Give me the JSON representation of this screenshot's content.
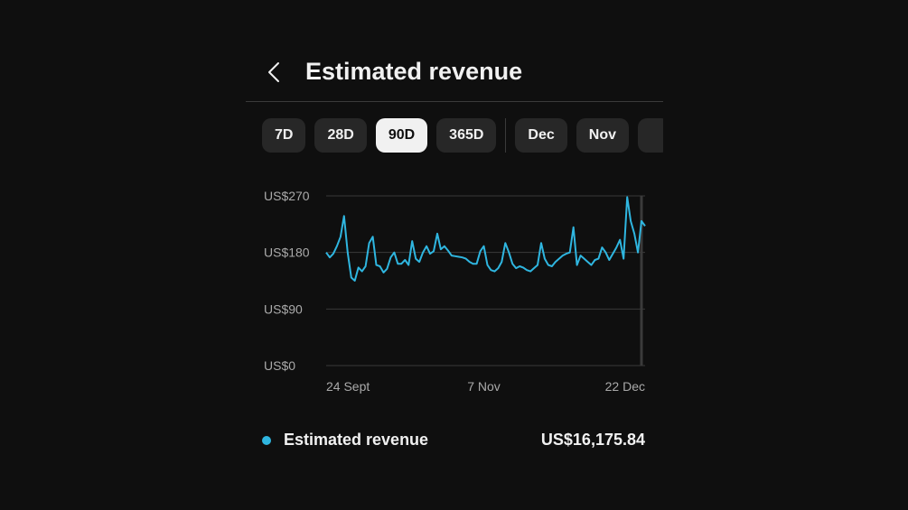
{
  "header": {
    "title": "Estimated revenue",
    "back_icon": "chevron-left-icon"
  },
  "chips": [
    {
      "label": "7D",
      "selected": false
    },
    {
      "label": "28D",
      "selected": false
    },
    {
      "label": "90D",
      "selected": true
    },
    {
      "label": "365D",
      "selected": false
    },
    {
      "label": "Dec",
      "selected": false
    },
    {
      "label": "Nov",
      "selected": false
    },
    {
      "label": "",
      "selected": false
    }
  ],
  "chips_separator_after_index": 3,
  "colors": {
    "accent": "#2fb6e0",
    "background": "#0f0f0f",
    "chip_bg": "#272727",
    "chip_selected_bg": "#f1f1f1",
    "grid": "#3a3a3a"
  },
  "chart_data": {
    "type": "line",
    "y_ticks": [
      {
        "value": 270,
        "label": "US$270"
      },
      {
        "value": 180,
        "label": "US$180"
      },
      {
        "value": 90,
        "label": "US$90"
      },
      {
        "value": 0,
        "label": "US$0"
      }
    ],
    "x_ticks": [
      {
        "index": 0,
        "label": "24 Sept"
      },
      {
        "index": 44,
        "label": "7 Nov"
      },
      {
        "index": 89,
        "label": "22 Dec"
      }
    ],
    "ylim": [
      0,
      270
    ],
    "grid": true,
    "series": [
      {
        "name": "Estimated revenue",
        "color": "#2fb6e0",
        "values": [
          180,
          172,
          178,
          190,
          205,
          238,
          180,
          140,
          135,
          156,
          150,
          158,
          195,
          205,
          160,
          158,
          148,
          154,
          172,
          180,
          162,
          162,
          168,
          160,
          198,
          170,
          165,
          180,
          190,
          178,
          182,
          210,
          185,
          190,
          183,
          175,
          174,
          173,
          172,
          170,
          165,
          162,
          162,
          182,
          190,
          160,
          152,
          150,
          155,
          165,
          195,
          180,
          162,
          155,
          158,
          156,
          152,
          150,
          155,
          160,
          195,
          170,
          160,
          158,
          165,
          170,
          175,
          178,
          180,
          220,
          160,
          175,
          170,
          165,
          160,
          168,
          170,
          188,
          180,
          168,
          178,
          188,
          200,
          170,
          268,
          230,
          210,
          180,
          230,
          222
        ]
      }
    ]
  },
  "legend": {
    "label": "Estimated revenue",
    "value": "US$16,175.84"
  }
}
